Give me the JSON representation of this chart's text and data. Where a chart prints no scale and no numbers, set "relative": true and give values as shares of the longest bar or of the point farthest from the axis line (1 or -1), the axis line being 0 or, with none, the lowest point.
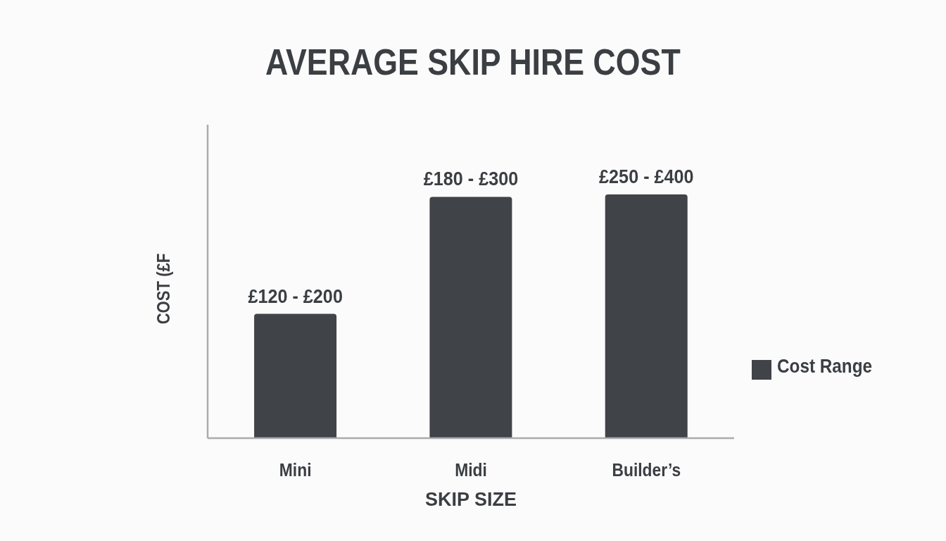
{
  "chart_data": {
    "type": "bar",
    "title": "AVERAGE SKIP HIRE COST",
    "xlabel": "SKIP SIZE",
    "ylabel": "COST (£F",
    "categories": [
      "Mini",
      "Midi",
      "Builder’s"
    ],
    "series": [
      {
        "name": "Cost Range",
        "color": "#404347",
        "values": [
          0.51,
          0.99,
          1
        ]
      }
    ],
    "relative": true,
    "tick_labels": "x",
    "legend": "right",
    "annotations": [
      {
        "text": "£120 - £200",
        "x": "Mini",
        "y": 0.51
      },
      {
        "text": "£180 - £300",
        "x": "Midi",
        "y": 0.99
      },
      {
        "text": "£250 - £400",
        "x": "Builder’s",
        "y": 1
      }
    ]
  }
}
